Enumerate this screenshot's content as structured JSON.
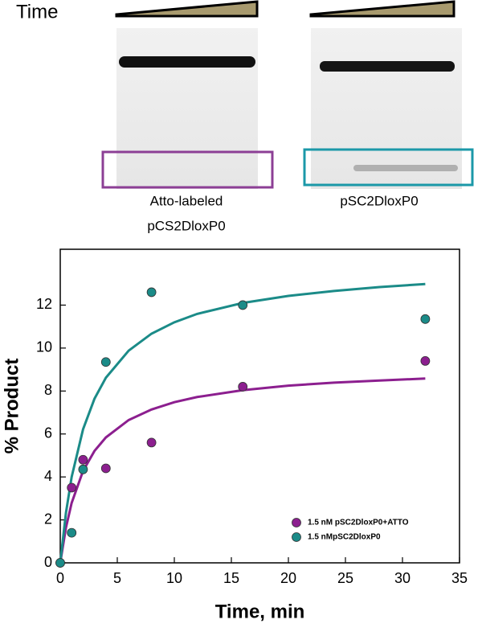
{
  "gel": {
    "time_label": "Time",
    "left_label": [
      "Atto-labeled",
      "pCS2DloxP0"
    ],
    "right_label": "pSC2DloxP0"
  },
  "chart_data": {
    "type": "scatter",
    "xlabel": "Time, min",
    "ylabel": "% Product",
    "xlim": [
      0,
      35
    ],
    "ylim": [
      0,
      14.6
    ],
    "xticks": [
      0,
      5,
      10,
      15,
      20,
      25,
      30,
      35
    ],
    "yticks": [
      0,
      2,
      4,
      6,
      8,
      10,
      12
    ],
    "series": [
      {
        "name": "1.5 nM pSC2DloxP0+ATTO",
        "color": "#8c1f8f",
        "x": [
          0,
          1,
          2,
          4,
          8,
          16,
          32
        ],
        "values": [
          0,
          3.5,
          4.8,
          4.4,
          5.6,
          8.2,
          9.4
        ]
      },
      {
        "name": "1.5 nMpSC2DloxP0",
        "color": "#1b8b88",
        "x": [
          0,
          1,
          2,
          4,
          8,
          16,
          32
        ],
        "values": [
          0,
          1.4,
          4.35,
          9.35,
          12.6,
          12.0,
          11.35
        ]
      }
    ],
    "fits": [
      {
        "color": "#8c1f8f",
        "x": [
          0,
          0.5,
          1,
          2,
          3,
          4,
          6,
          8,
          10,
          12,
          16,
          20,
          24,
          28,
          32
        ],
        "values": [
          0,
          1.64,
          2.79,
          4.28,
          5.21,
          5.84,
          6.65,
          7.14,
          7.48,
          7.72,
          8.04,
          8.25,
          8.39,
          8.49,
          8.58
        ]
      },
      {
        "color": "#1b8b88",
        "x": [
          0,
          0.5,
          1,
          2,
          3,
          4,
          6,
          8,
          10,
          12,
          16,
          20,
          24,
          28,
          32
        ],
        "values": [
          0,
          2.33,
          4.0,
          6.22,
          7.64,
          8.62,
          9.88,
          10.67,
          11.2,
          11.59,
          12.1,
          12.43,
          12.66,
          12.84,
          12.98
        ]
      }
    ]
  }
}
